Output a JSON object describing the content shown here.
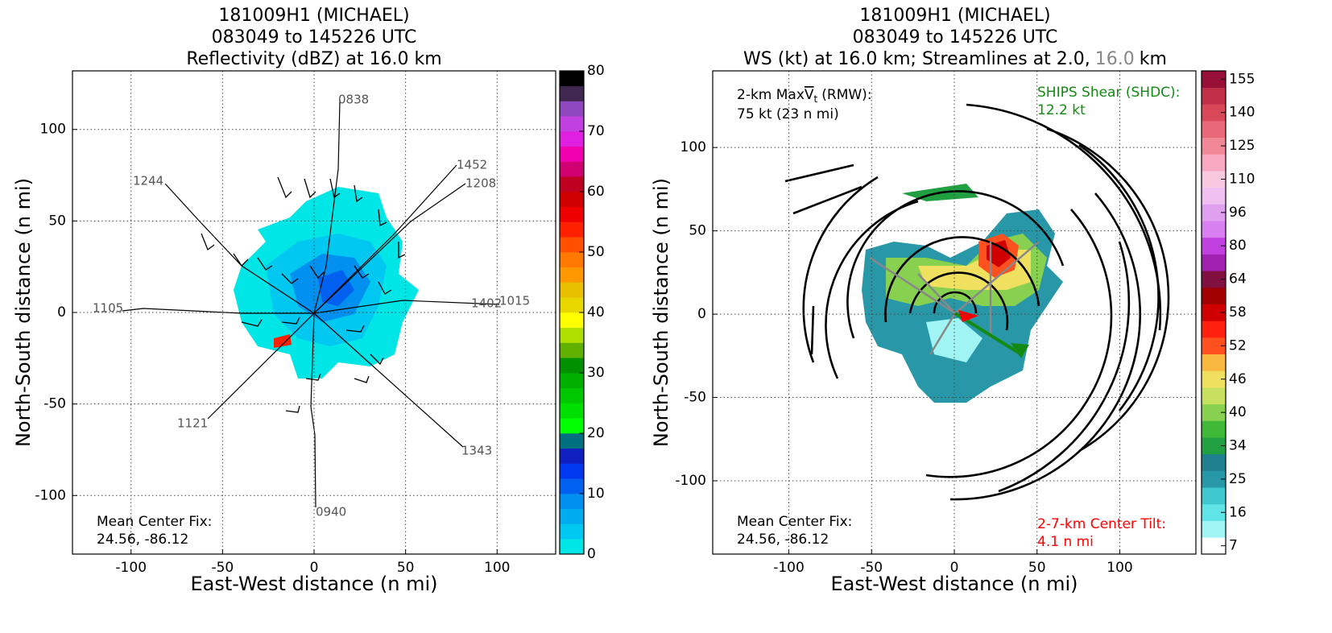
{
  "chart_data": [
    {
      "type": "field",
      "title": [
        "181009H1 (MICHAEL)",
        "083049 to 145226 UTC",
        "Reflectivity (dBZ) at 16.0 km"
      ],
      "xlabel": "East-West distance (n mi)",
      "ylabel": "North-South distance (n mi)",
      "xlim": [
        -132,
        132
      ],
      "ylim": [
        -132,
        132
      ],
      "xticks": [
        -100,
        -50,
        0,
        50,
        100
      ],
      "yticks": [
        -100,
        -50,
        0,
        50,
        100
      ],
      "grid": true,
      "colorbar": {
        "lim": [
          0,
          80
        ],
        "ticks": [
          0,
          10,
          20,
          30,
          40,
          50,
          60,
          70,
          80
        ],
        "colors": [
          "#00e6e6",
          "#00c8f0",
          "#00acf0",
          "#0090f0",
          "#0060f0",
          "#0038f0",
          "#1020c0",
          "#007080",
          "#00ff00",
          "#00e000",
          "#00c800",
          "#00b000",
          "#009000",
          "#60b000",
          "#b0e000",
          "#ffff00",
          "#e8d800",
          "#e8c000",
          "#ff9800",
          "#ff7800",
          "#ff5000",
          "#ff2000",
          "#ee0000",
          "#d00000",
          "#c00020",
          "#d00070",
          "#f000b0",
          "#e020e0",
          "#c040e0",
          "#9048c0",
          "#402850",
          "#000000"
        ]
      },
      "annotations": [
        "Mean Center Fix:",
        "24.56, -86.12"
      ],
      "track_labels": [
        "0838",
        "1452",
        "1208",
        "1244",
        "1105",
        "1402",
        "1015",
        "1121",
        "1343",
        "0940"
      ]
    },
    {
      "type": "field",
      "title": [
        "181009H1 (MICHAEL)",
        "083049 to 145226 UTC",
        [
          "WS (kt) at 16.0 km; Streamlines at 2.0,",
          "16.0",
          "km"
        ]
      ],
      "xlabel": "East-West distance (n mi)",
      "ylabel": "North-South distance (n mi)",
      "xlim": [
        -146,
        146
      ],
      "ylim": [
        -144,
        146
      ],
      "xticks": [
        -100,
        -50,
        0,
        50,
        100
      ],
      "yticks": [
        -100,
        -50,
        0,
        50,
        100
      ],
      "grid": true,
      "colorbar": {
        "ticks": [
          7,
          16,
          25,
          34,
          40,
          46,
          52,
          58,
          64,
          80,
          96,
          110,
          125,
          140,
          155
        ],
        "colors": [
          "#ffffff",
          "#a0f4f4",
          "#60e4e8",
          "#40c8d0",
          "#2898a8",
          "#208090",
          "#20a040",
          "#40b838",
          "#88d050",
          "#c8e060",
          "#f0e060",
          "#f8b840",
          "#ff5020",
          "#ff2010",
          "#d00000",
          "#a00000",
          "#801040",
          "#a020b0",
          "#c040e0",
          "#d880f0",
          "#e0a0f0",
          "#f0c0f0",
          "#f8c8e0",
          "#f8a8c0",
          "#f08898",
          "#e86878",
          "#d84858",
          "#c03048",
          "#981038"
        ]
      },
      "max_wind": {
        "prefix": "2-km Max",
        "symbol": "V",
        "subscript": "t",
        "suffix": "(RMW):",
        "value": "75 kt (23 n mi)"
      },
      "shear": [
        "SHIPS Shear (SHDC):",
        "12.2 kt"
      ],
      "tilt": [
        "2-7-km Center Tilt:",
        "4.1 n mi"
      ],
      "annotations": [
        "Mean Center Fix:",
        "24.56, -86.12"
      ]
    }
  ]
}
